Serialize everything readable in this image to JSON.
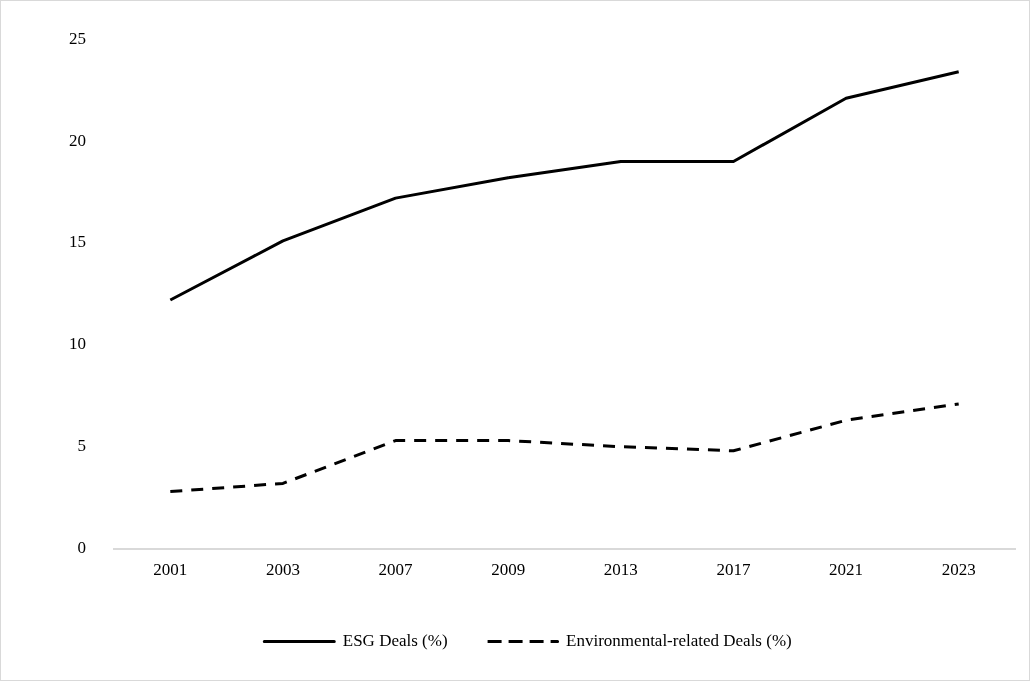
{
  "chart_data": {
    "type": "line",
    "categories": [
      "2001",
      "2003",
      "2007",
      "2009",
      "2013",
      "2017",
      "2021",
      "2023"
    ],
    "series": [
      {
        "name": "ESG Deals (%)",
        "color": "#000000",
        "line_style": "solid",
        "values": [
          12.2,
          15.1,
          17.2,
          18.2,
          19.0,
          19.0,
          22.1,
          23.4
        ]
      },
      {
        "name": "Environmental-related Deals (%)",
        "color": "#000000",
        "line_style": "dashed",
        "values": [
          2.8,
          3.2,
          5.3,
          5.3,
          5.0,
          4.8,
          6.3,
          7.1
        ]
      }
    ],
    "ylim": [
      0,
      25
    ],
    "yticks": [
      0,
      5,
      10,
      15,
      20,
      25
    ],
    "grid": false,
    "legend": "bottom"
  }
}
